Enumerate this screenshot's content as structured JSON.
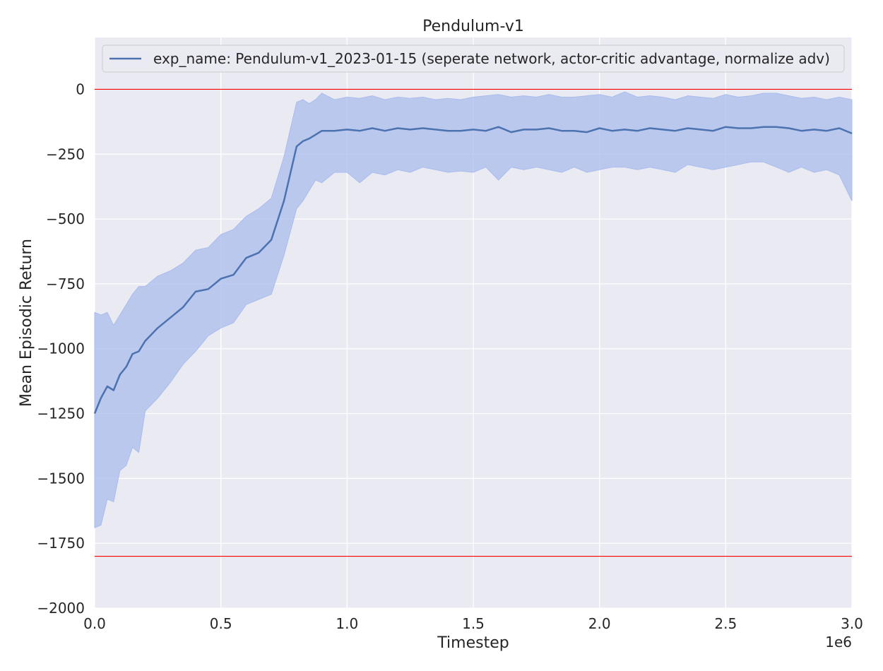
{
  "chart_data": {
    "type": "line",
    "title": "Pendulum-v1",
    "xlabel": "Timestep",
    "ylabel": "Mean Episodic Return",
    "x_offset_label": "1e6",
    "xlim": [
      0,
      3000000
    ],
    "ylim": [
      -2000,
      200
    ],
    "xticks": [
      0,
      500000,
      1000000,
      1500000,
      2000000,
      2500000,
      3000000
    ],
    "xtick_labels": [
      "0.0",
      "0.5",
      "1.0",
      "1.5",
      "2.0",
      "2.5",
      "3.0"
    ],
    "yticks": [
      0,
      -250,
      -500,
      -750,
      -1000,
      -1250,
      -1500,
      -1750,
      -2000
    ],
    "ytick_labels": [
      "0",
      "−250",
      "−500",
      "−750",
      "−1000",
      "−1250",
      "−1500",
      "−1750",
      "−2000"
    ],
    "grid": true,
    "legend_position": "top",
    "reference_lines": [
      {
        "y": 0,
        "color": "#ff0000"
      },
      {
        "y": -1800,
        "color": "#ff0000"
      }
    ],
    "series": [
      {
        "name": "exp_name: Pendulum-v1_2023-01-15 (seperate network, actor-critic advantage, normalize adv)",
        "color": "#4c72b0",
        "band_color": "#a9bcec",
        "x": [
          0,
          25000,
          50000,
          75000,
          100000,
          125000,
          150000,
          175000,
          200000,
          250000,
          300000,
          350000,
          400000,
          450000,
          500000,
          550000,
          600000,
          650000,
          700000,
          750000,
          800000,
          825000,
          850000,
          875000,
          900000,
          950000,
          1000000,
          1050000,
          1100000,
          1150000,
          1200000,
          1250000,
          1300000,
          1350000,
          1400000,
          1450000,
          1500000,
          1550000,
          1600000,
          1650000,
          1700000,
          1750000,
          1800000,
          1850000,
          1900000,
          1950000,
          2000000,
          2050000,
          2100000,
          2150000,
          2200000,
          2250000,
          2300000,
          2350000,
          2400000,
          2450000,
          2500000,
          2550000,
          2600000,
          2650000,
          2700000,
          2750000,
          2800000,
          2850000,
          2900000,
          2950000,
          3000000
        ],
        "mean": [
          -1250,
          -1190,
          -1145,
          -1160,
          -1100,
          -1070,
          -1020,
          -1010,
          -970,
          -920,
          -880,
          -840,
          -780,
          -770,
          -730,
          -715,
          -650,
          -630,
          -580,
          -430,
          -220,
          -200,
          -190,
          -175,
          -160,
          -160,
          -155,
          -160,
          -150,
          -160,
          -150,
          -155,
          -150,
          -155,
          -160,
          -160,
          -155,
          -160,
          -145,
          -165,
          -155,
          -155,
          -150,
          -160,
          -160,
          -165,
          -150,
          -160,
          -155,
          -160,
          -150,
          -155,
          -160,
          -150,
          -155,
          -160,
          -145,
          -150,
          -150,
          -145,
          -145,
          -150,
          -160,
          -155,
          -160,
          -150,
          -170
        ],
        "upper": [
          -860,
          -870,
          -860,
          -910,
          -870,
          -830,
          -790,
          -760,
          -760,
          -720,
          -700,
          -670,
          -620,
          -610,
          -560,
          -540,
          -490,
          -460,
          -420,
          -260,
          -50,
          -40,
          -55,
          -40,
          -15,
          -40,
          -30,
          -35,
          -25,
          -40,
          -30,
          -35,
          -30,
          -40,
          -35,
          -40,
          -30,
          -25,
          -20,
          -30,
          -25,
          -30,
          -20,
          -30,
          -30,
          -25,
          -20,
          -30,
          -10,
          -30,
          -25,
          -30,
          -40,
          -25,
          -30,
          -35,
          -20,
          -30,
          -25,
          -15,
          -15,
          -25,
          -35,
          -30,
          -40,
          -30,
          -40
        ],
        "lower": [
          -1690,
          -1680,
          -1580,
          -1590,
          -1470,
          -1450,
          -1380,
          -1400,
          -1240,
          -1190,
          -1130,
          -1060,
          -1010,
          -950,
          -920,
          -900,
          -830,
          -810,
          -790,
          -640,
          -460,
          -430,
          -390,
          -350,
          -360,
          -320,
          -320,
          -360,
          -320,
          -330,
          -310,
          -320,
          -300,
          -310,
          -320,
          -315,
          -320,
          -300,
          -350,
          -300,
          -310,
          -300,
          -310,
          -320,
          -300,
          -320,
          -310,
          -300,
          -300,
          -310,
          -300,
          -310,
          -320,
          -290,
          -300,
          -310,
          -300,
          -290,
          -280,
          -280,
          -300,
          -320,
          -300,
          -320,
          -310,
          -330,
          -430
        ]
      }
    ]
  }
}
